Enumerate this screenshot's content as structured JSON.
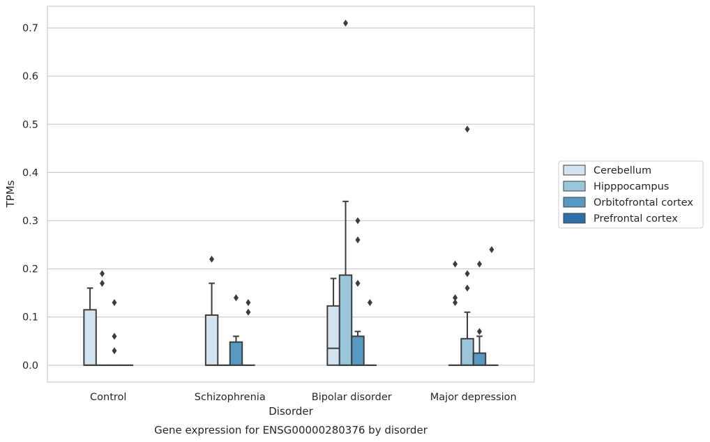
{
  "chart_data": {
    "type": "box",
    "title": "Gene expression for ENSG00000280376 by disorder",
    "xlabel": "Disorder",
    "ylabel": "TPMs",
    "ylim": [
      -0.035,
      0.745
    ],
    "yticks": [
      "0.0",
      "0.1",
      "0.2",
      "0.3",
      "0.4",
      "0.5",
      "0.6",
      "0.7"
    ],
    "grid": true,
    "legend_placement": "right",
    "categories": [
      "Control",
      "Schizophrenia",
      "Bipolar disorder",
      "Major depression"
    ],
    "series": [
      {
        "name": "Cerebellum",
        "color": "#d3e3f0",
        "boxes": [
          {
            "q1": 0.0,
            "median": 0.0,
            "q3": 0.115,
            "whislo": 0.0,
            "whishi": 0.16,
            "fliers": []
          },
          {
            "q1": 0.0,
            "median": 0.0,
            "q3": 0.104,
            "whislo": 0.0,
            "whishi": 0.17,
            "fliers": [
              0.22
            ]
          },
          {
            "q1": 0.0,
            "median": 0.035,
            "q3": 0.123,
            "whislo": 0.0,
            "whishi": 0.18,
            "fliers": []
          },
          {
            "q1": 0.0,
            "median": 0.0,
            "q3": 0.0,
            "whislo": 0.0,
            "whishi": 0.0,
            "fliers": [
              0.13,
              0.14,
              0.21
            ]
          }
        ]
      },
      {
        "name": "Hipppocampus",
        "color": "#9ac6dc",
        "boxes": [
          {
            "q1": 0.0,
            "median": 0.0,
            "q3": 0.0,
            "whislo": 0.0,
            "whishi": 0.0,
            "fliers": [
              0.17,
              0.19
            ]
          },
          {
            "q1": 0.0,
            "median": 0.0,
            "q3": 0.0,
            "whislo": 0.0,
            "whishi": 0.0,
            "fliers": []
          },
          {
            "q1": 0.0,
            "median": 0.0,
            "q3": 0.187,
            "whislo": 0.0,
            "whishi": 0.34,
            "fliers": [
              0.71
            ]
          },
          {
            "q1": 0.0,
            "median": 0.0,
            "q3": 0.055,
            "whislo": 0.0,
            "whishi": 0.11,
            "fliers": [
              0.16,
              0.19,
              0.49
            ]
          }
        ]
      },
      {
        "name": "Orbitofrontal cortex",
        "color": "#5899c4",
        "boxes": [
          {
            "q1": 0.0,
            "median": 0.0,
            "q3": 0.0,
            "whislo": 0.0,
            "whishi": 0.0,
            "fliers": [
              0.03,
              0.06,
              0.13
            ]
          },
          {
            "q1": 0.0,
            "median": 0.0,
            "q3": 0.048,
            "whislo": 0.0,
            "whishi": 0.06,
            "fliers": [
              0.14
            ]
          },
          {
            "q1": 0.0,
            "median": 0.0,
            "q3": 0.06,
            "whislo": 0.0,
            "whishi": 0.07,
            "fliers": [
              0.17,
              0.26,
              0.3
            ]
          },
          {
            "q1": 0.0,
            "median": 0.0,
            "q3": 0.025,
            "whislo": 0.0,
            "whishi": 0.06,
            "fliers": [
              0.07,
              0.21
            ]
          }
        ]
      },
      {
        "name": "Prefrontal cortex",
        "color": "#2d6fab",
        "boxes": [
          {
            "q1": 0.0,
            "median": 0.0,
            "q3": 0.0,
            "whislo": 0.0,
            "whishi": 0.0,
            "fliers": []
          },
          {
            "q1": 0.0,
            "median": 0.0,
            "q3": 0.0,
            "whislo": 0.0,
            "whishi": 0.0,
            "fliers": [
              0.11,
              0.13
            ]
          },
          {
            "q1": 0.0,
            "median": 0.0,
            "q3": 0.0,
            "whislo": 0.0,
            "whishi": 0.0,
            "fliers": [
              0.13
            ]
          },
          {
            "q1": 0.0,
            "median": 0.0,
            "q3": 0.0,
            "whislo": 0.0,
            "whishi": 0.0,
            "fliers": [
              0.24
            ]
          }
        ]
      }
    ]
  }
}
